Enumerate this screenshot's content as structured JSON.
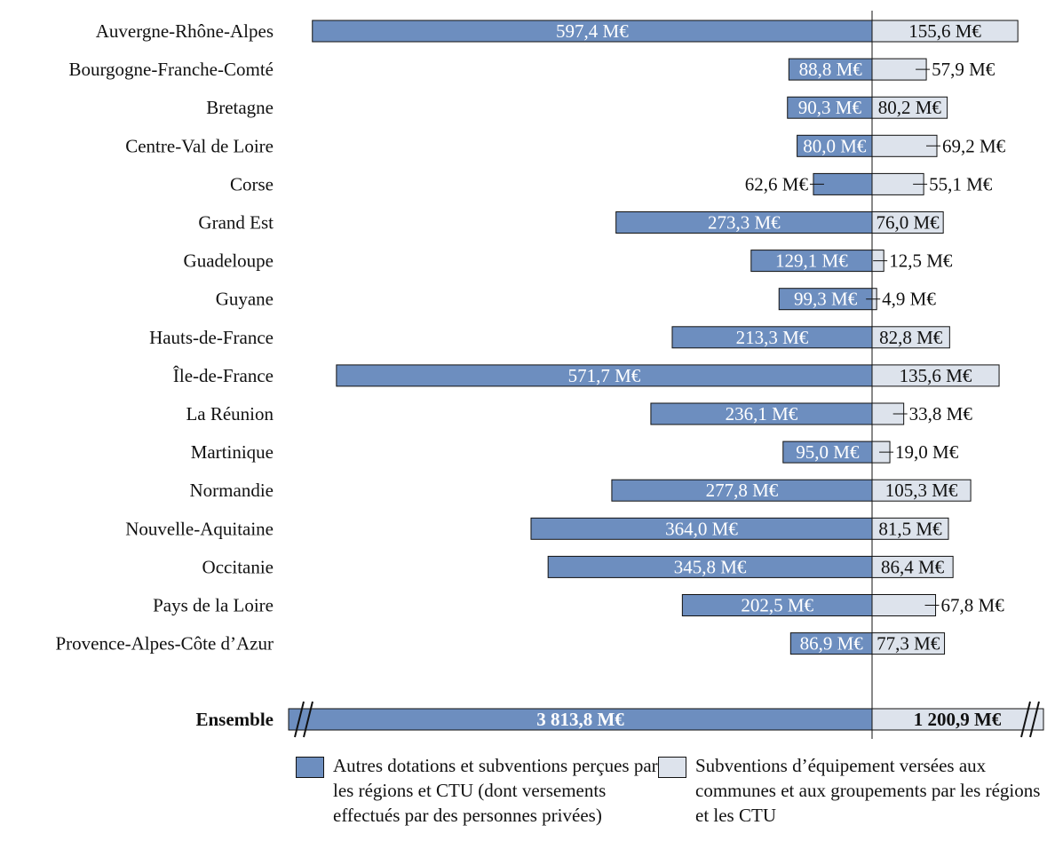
{
  "chart_data": {
    "type": "bar",
    "orientation": "horizontal-diverging",
    "unit": "M€",
    "categories": [
      "Auvergne-Rhône-Alpes",
      "Bourgogne-Franche-Comté",
      "Bretagne",
      "Centre-Val de Loire",
      "Corse",
      "Grand Est",
      "Guadeloupe",
      "Guyane",
      "Hauts-de-France",
      "Île-de-France",
      "La Réunion",
      "Martinique",
      "Normandie",
      "Nouvelle-Aquitaine",
      "Occitanie",
      "Pays de la Loire",
      "Provence-Alpes-Côte d’Azur"
    ],
    "series": [
      {
        "name": "Autres dotations et subventions perçues par les régions et CTU (dont versements effectués par des personnes privées)",
        "color": "#6d8ebf",
        "values": [
          597.4,
          88.8,
          90.3,
          80.0,
          62.6,
          273.3,
          129.1,
          99.3,
          213.3,
          571.7,
          236.1,
          95.0,
          277.8,
          364.0,
          345.8,
          202.5,
          86.9
        ],
        "labels": [
          "597,4 M€",
          "88,8 M€",
          "90,3 M€",
          "80,0 M€",
          "62,6 M€",
          "273,3 M€",
          "129,1 M€",
          "99,3 M€",
          "213,3 M€",
          "571,7 M€",
          "236,1 M€",
          "95,0 M€",
          "277,8 M€",
          "364,0 M€",
          "345,8 M€",
          "202,5 M€",
          "86,9 M€"
        ]
      },
      {
        "name": "Subventions d’équipement versées aux communes et aux groupements par les régions et les CTU",
        "color": "#dde3ec",
        "values": [
          155.6,
          57.9,
          80.2,
          69.2,
          55.1,
          76.0,
          12.5,
          4.9,
          82.8,
          135.6,
          33.8,
          19.0,
          105.3,
          81.5,
          86.4,
          67.8,
          77.3
        ],
        "labels": [
          "155,6 M€",
          "57,9 M€",
          "80,2 M€",
          "69,2 M€",
          "55,1 M€",
          "76,0 M€",
          "12,5 M€",
          "4,9 M€",
          "82,8 M€",
          "135,6 M€",
          "33,8 M€",
          "19,0 M€",
          "105,3 M€",
          "81,5 M€",
          "86,4 M€",
          "67,8 M€",
          "77,3 M€"
        ]
      }
    ],
    "total": {
      "category": "Ensemble",
      "left_value": 3813.8,
      "left_label": "3 813,8 M€",
      "right_value": 1200.9,
      "right_label": "1 200,9 M€",
      "axis_break": true
    },
    "legend_placement": "bottom",
    "grid": false
  },
  "legend": {
    "left_text": "Autres dotations et subventions perçues par les régions et CTU (dont versements effectués par des personnes privées)",
    "right_text": "Subventions d’équipement versées aux communes et aux groupements par les régions et les CTU"
  }
}
